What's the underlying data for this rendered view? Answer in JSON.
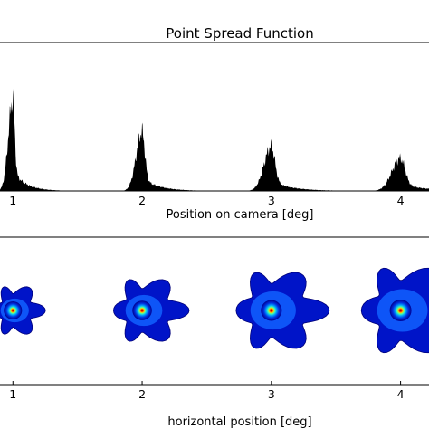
{
  "chart_data": [
    {
      "type": "area",
      "title": "Point Spread Function",
      "xlabel": "Position on camera [deg]",
      "ylabel": "",
      "xticks": [
        "1",
        "2",
        "3",
        "4"
      ],
      "xlim": [
        0.9,
        4.22
      ],
      "ylim": [
        0,
        1.0
      ],
      "grid": false,
      "colors": {
        "fill": "#000000"
      },
      "peaks": [
        {
          "x": 1,
          "height": 0.62
        },
        {
          "x": 2,
          "height": 0.4
        },
        {
          "x": 3,
          "height": 0.3
        },
        {
          "x": 4,
          "height": 0.22
        }
      ]
    },
    {
      "type": "heatmap",
      "xlabel": "horizontal position [deg]",
      "ylabel": "",
      "xticks": [
        "1",
        "2",
        "3",
        "4"
      ],
      "xlim": [
        0.9,
        4.22
      ],
      "grid": false,
      "colormap": "jet",
      "spots": [
        {
          "x": 1,
          "relative_size": 0.35
        },
        {
          "x": 2,
          "relative_size": 0.6
        },
        {
          "x": 3,
          "relative_size": 0.85
        },
        {
          "x": 4,
          "relative_size": 1.0
        }
      ]
    }
  ]
}
